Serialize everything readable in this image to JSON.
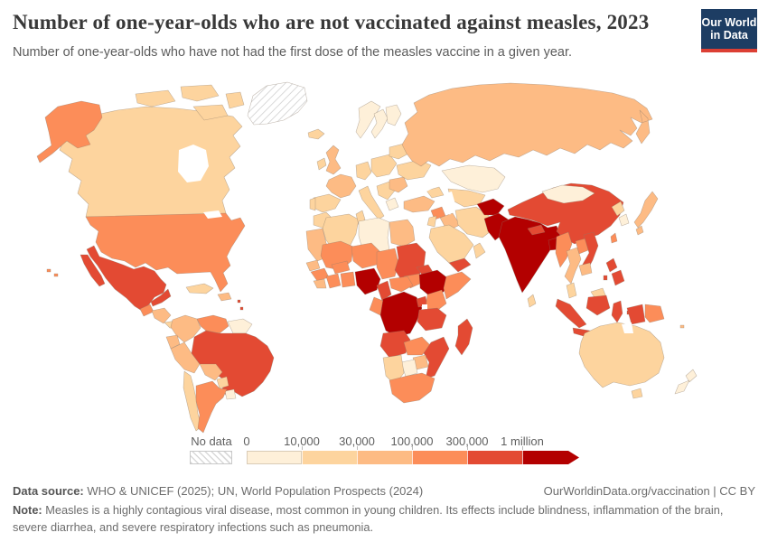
{
  "header": {
    "title": "Number of one-year-olds who are not vaccinated against measles, 2023",
    "subtitle": "Number of one-year-olds who have not had the first dose of the measles vaccine in a given year.",
    "logo": {
      "line1": "Our World",
      "line2": "in Data",
      "bg_color": "#1d3d63",
      "accent_color": "#dc3f34"
    }
  },
  "chart_data": {
    "type": "choropleth_map",
    "title": "Number of one-year-olds who are not vaccinated against measles",
    "year": "2023",
    "legend": {
      "no_data_label": "No data",
      "ticks": [
        "0",
        "10,000",
        "30,000",
        "100,000",
        "300,000",
        "1 million"
      ],
      "bin_colors": [
        "#fef0d9",
        "#fdd49e",
        "#fdbb84",
        "#fc8d59",
        "#e34a33",
        "#b30000"
      ],
      "arrow_end": true
    },
    "regions": [
      {
        "id": "greenland",
        "bin": "no_data"
      },
      {
        "id": "canada",
        "bin": 1
      },
      {
        "id": "arctic-islands",
        "bin": 1
      },
      {
        "id": "alaska",
        "bin": 3
      },
      {
        "id": "usa",
        "bin": 3
      },
      {
        "id": "hawaii",
        "bin": 3
      },
      {
        "id": "mexico",
        "bin": 4
      },
      {
        "id": "guatemala",
        "bin": 3
      },
      {
        "id": "honduras-nicaragua",
        "bin": 2
      },
      {
        "id": "costa-rica-panama",
        "bin": 1
      },
      {
        "id": "cuba",
        "bin": 1
      },
      {
        "id": "hispaniola",
        "bin": 2
      },
      {
        "id": "lesser-antilles",
        "bin": 4
      },
      {
        "id": "colombia",
        "bin": 2
      },
      {
        "id": "venezuela",
        "bin": 3
      },
      {
        "id": "guyanas",
        "bin": 0
      },
      {
        "id": "ecuador",
        "bin": 2
      },
      {
        "id": "peru",
        "bin": 2
      },
      {
        "id": "brazil",
        "bin": 4
      },
      {
        "id": "bolivia",
        "bin": 2
      },
      {
        "id": "paraguay",
        "bin": 1
      },
      {
        "id": "uruguay",
        "bin": 0
      },
      {
        "id": "chile",
        "bin": 1
      },
      {
        "id": "argentina",
        "bin": 3
      },
      {
        "id": "iceland",
        "bin": 1
      },
      {
        "id": "norway",
        "bin": 0
      },
      {
        "id": "sweden",
        "bin": 0
      },
      {
        "id": "finland",
        "bin": 0
      },
      {
        "id": "uk",
        "bin": 2
      },
      {
        "id": "ireland",
        "bin": 1
      },
      {
        "id": "france",
        "bin": 2
      },
      {
        "id": "spain",
        "bin": 1
      },
      {
        "id": "portugal",
        "bin": 1
      },
      {
        "id": "germany",
        "bin": 1
      },
      {
        "id": "italy",
        "bin": 1
      },
      {
        "id": "poland-czechia",
        "bin": 1
      },
      {
        "id": "balkans",
        "bin": 1
      },
      {
        "id": "greece",
        "bin": 0
      },
      {
        "id": "romania-bulgaria",
        "bin": 2
      },
      {
        "id": "ukraine",
        "bin": 1
      },
      {
        "id": "belarus-baltics",
        "bin": 1
      },
      {
        "id": "russia",
        "bin": 2
      },
      {
        "id": "kazakhstan",
        "bin": 0
      },
      {
        "id": "central-asia",
        "bin": 1
      },
      {
        "id": "caucasus",
        "bin": 1
      },
      {
        "id": "turkey",
        "bin": 2
      },
      {
        "id": "syria",
        "bin": 3
      },
      {
        "id": "jordan-israel",
        "bin": 1
      },
      {
        "id": "iraq",
        "bin": 2
      },
      {
        "id": "iran",
        "bin": 1
      },
      {
        "id": "saudi-arabia",
        "bin": 1
      },
      {
        "id": "yemen",
        "bin": 4
      },
      {
        "id": "oman",
        "bin": 1
      },
      {
        "id": "morocco",
        "bin": 1
      },
      {
        "id": "algeria",
        "bin": 1
      },
      {
        "id": "tunisia",
        "bin": 1
      },
      {
        "id": "libya",
        "bin": 0
      },
      {
        "id": "egypt",
        "bin": 2
      },
      {
        "id": "mauritania",
        "bin": 2
      },
      {
        "id": "mali",
        "bin": 3
      },
      {
        "id": "niger",
        "bin": 3
      },
      {
        "id": "chad",
        "bin": 3
      },
      {
        "id": "sudan",
        "bin": 4
      },
      {
        "id": "south-sudan",
        "bin": 3
      },
      {
        "id": "eritrea",
        "bin": 4
      },
      {
        "id": "ethiopia",
        "bin": 5
      },
      {
        "id": "somalia",
        "bin": 3
      },
      {
        "id": "senegal",
        "bin": 2
      },
      {
        "id": "guinea",
        "bin": 3
      },
      {
        "id": "sierra-leone-liberia",
        "bin": 2
      },
      {
        "id": "ivory-coast",
        "bin": 3
      },
      {
        "id": "ghana-benin",
        "bin": 3
      },
      {
        "id": "burkina-faso",
        "bin": 3
      },
      {
        "id": "nigeria",
        "bin": 5
      },
      {
        "id": "cameroon",
        "bin": 4
      },
      {
        "id": "central-african-republic",
        "bin": 3
      },
      {
        "id": "gabon-congo",
        "bin": 3
      },
      {
        "id": "drc",
        "bin": 5
      },
      {
        "id": "uganda",
        "bin": 4
      },
      {
        "id": "kenya",
        "bin": 3
      },
      {
        "id": "tanzania",
        "bin": 4
      },
      {
        "id": "angola",
        "bin": 4
      },
      {
        "id": "zambia",
        "bin": 3
      },
      {
        "id": "mozambique",
        "bin": 4
      },
      {
        "id": "zimbabwe",
        "bin": 2
      },
      {
        "id": "botswana",
        "bin": 0
      },
      {
        "id": "namibia",
        "bin": 1
      },
      {
        "id": "south-africa",
        "bin": 3
      },
      {
        "id": "madagascar",
        "bin": 4
      },
      {
        "id": "afghanistan",
        "bin": 5
      },
      {
        "id": "pakistan",
        "bin": 5
      },
      {
        "id": "india",
        "bin": 5
      },
      {
        "id": "nepal",
        "bin": 4
      },
      {
        "id": "bangladesh",
        "bin": 5
      },
      {
        "id": "sri-lanka",
        "bin": 1
      },
      {
        "id": "china",
        "bin": 4
      },
      {
        "id": "mongolia",
        "bin": 0
      },
      {
        "id": "north-korea",
        "bin": 1
      },
      {
        "id": "south-korea",
        "bin": 0
      },
      {
        "id": "japan",
        "bin": 2
      },
      {
        "id": "taiwan",
        "bin": 3
      },
      {
        "id": "myanmar",
        "bin": 3
      },
      {
        "id": "thailand",
        "bin": 2
      },
      {
        "id": "laos",
        "bin": 3
      },
      {
        "id": "vietnam",
        "bin": 4
      },
      {
        "id": "cambodia",
        "bin": 2
      },
      {
        "id": "malaysia-peninsula",
        "bin": 1
      },
      {
        "id": "malaysia-borneo",
        "bin": 1
      },
      {
        "id": "sumatra",
        "bin": 4
      },
      {
        "id": "java",
        "bin": 4
      },
      {
        "id": "kalimantan",
        "bin": 4
      },
      {
        "id": "sulawesi",
        "bin": 4
      },
      {
        "id": "west-papua",
        "bin": 4
      },
      {
        "id": "papua-new-guinea",
        "bin": 3
      },
      {
        "id": "philippines",
        "bin": 4
      },
      {
        "id": "australia",
        "bin": 1
      },
      {
        "id": "tasmania",
        "bin": 1
      },
      {
        "id": "new-zealand-north",
        "bin": 0
      },
      {
        "id": "new-zealand-south",
        "bin": 0
      },
      {
        "id": "fiji",
        "bin": 2
      }
    ]
  },
  "footer": {
    "data_source_label": "Data source:",
    "data_source_text": " WHO & UNICEF (2025); UN, World Population Prospects (2024)",
    "link_text": "OurWorldinData.org/vaccination | CC BY",
    "note_label": "Note:",
    "note_text": " Measles is a highly contagious viral disease, most common in young children. Its effects include blindness, inflammation of the brain, severe diarrhea, and severe respiratory infections such as pneumonia."
  }
}
